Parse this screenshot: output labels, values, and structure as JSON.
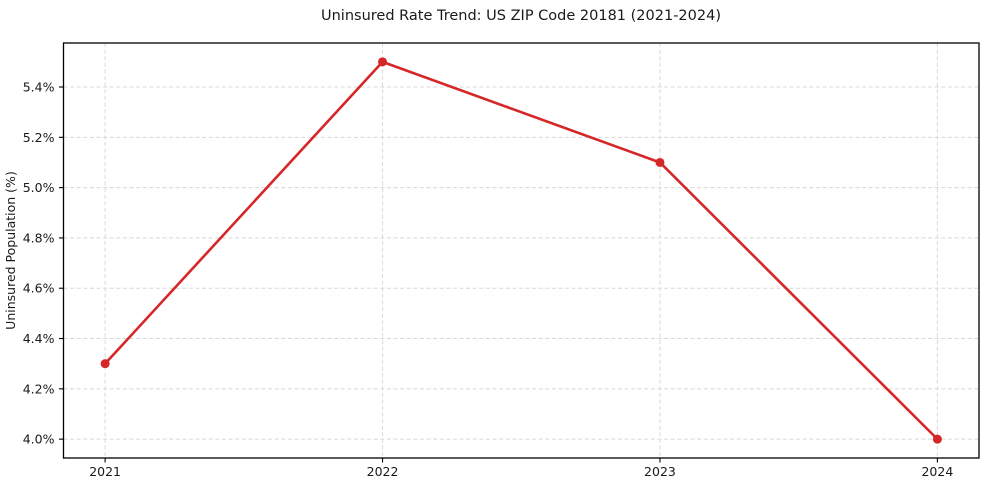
{
  "chart_data": {
    "type": "line",
    "title": "Uninsured Rate Trend: US ZIP Code 20181 (2021-2024)",
    "xlabel": "",
    "ylabel": "Uninsured Population (%)",
    "x": [
      2021,
      2022,
      2023,
      2024
    ],
    "x_tick_labels": [
      "2021",
      "2022",
      "2023",
      "2024"
    ],
    "series": [
      {
        "name": "Uninsured Rate",
        "values": [
          4.3,
          5.5,
          5.1,
          4.0
        ]
      }
    ],
    "y_ticks": [
      4.0,
      4.2,
      4.4,
      4.6,
      4.8,
      5.0,
      5.2,
      5.4
    ],
    "y_tick_labels": [
      "4.0%",
      "4.2%",
      "4.4%",
      "4.6%",
      "4.8%",
      "5.0%",
      "5.2%",
      "5.4%"
    ],
    "xlim": [
      2020.85,
      2024.15
    ],
    "ylim": [
      3.925,
      5.575
    ],
    "grid": true,
    "grid_style": "dashed",
    "legend_position": "none",
    "line_color": "#d62728",
    "marker": "circle",
    "grid_color": "#d8d8d8",
    "axis_color": "#000000",
    "text_color": "#1a1a1a",
    "background_color": "#ffffff"
  }
}
